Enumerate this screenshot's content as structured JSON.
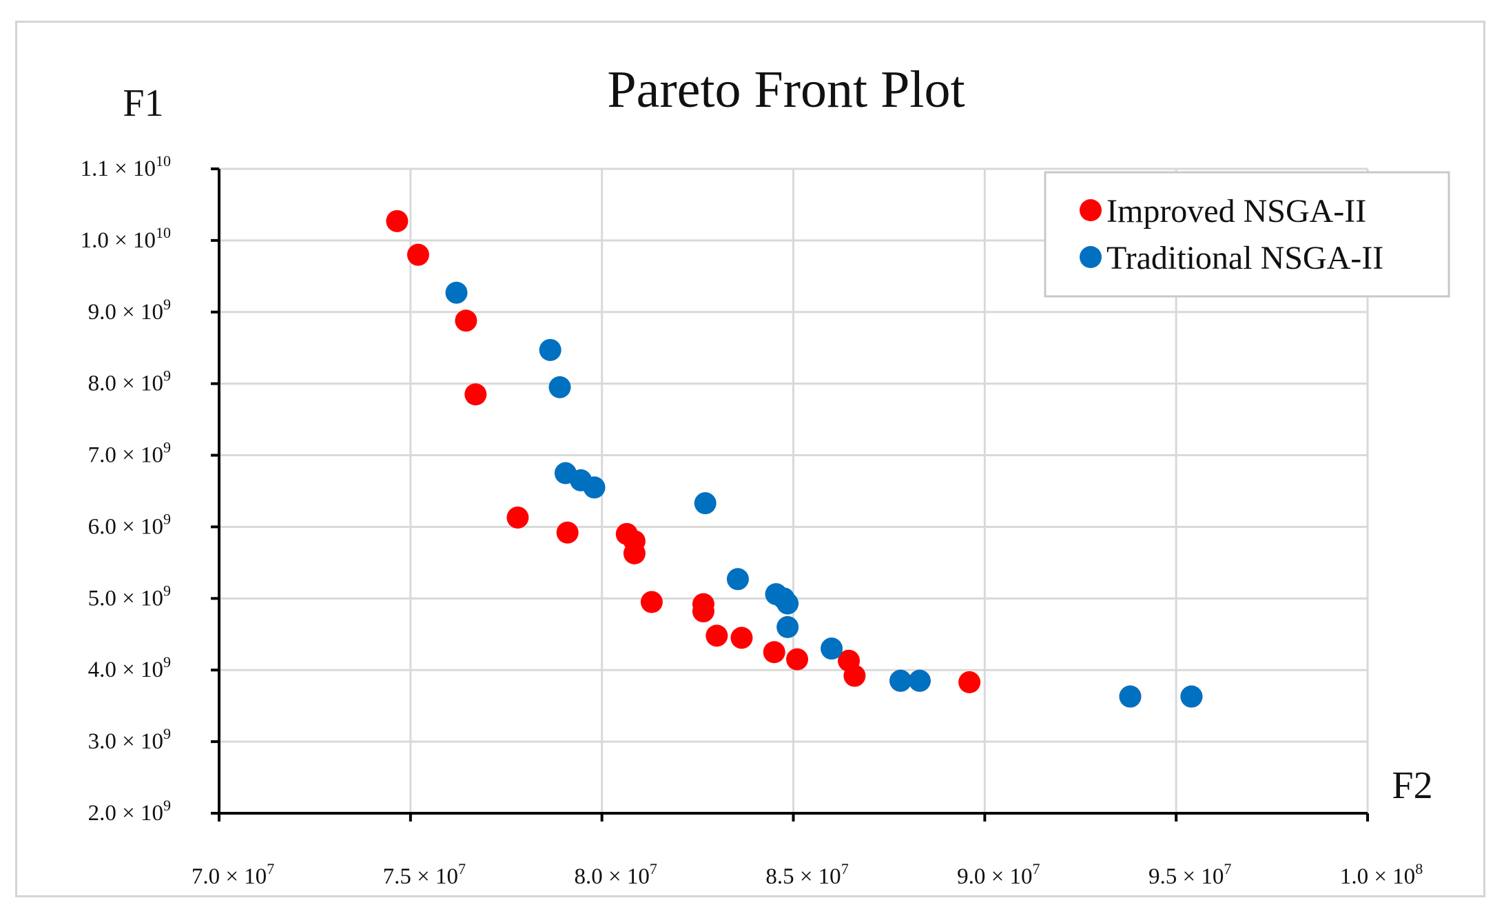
{
  "chart_data": {
    "type": "scatter",
    "title": "Pareto Front Plot",
    "xlabel": "F2",
    "ylabel": "F1",
    "xlim": [
      70000000,
      100000000
    ],
    "ylim": [
      2000000000,
      11000000000
    ],
    "x_ticks": [
      {
        "value": 70000000,
        "mantissa": "7.0",
        "exp": "7"
      },
      {
        "value": 75000000,
        "mantissa": "7.5",
        "exp": "7"
      },
      {
        "value": 80000000,
        "mantissa": "8.0",
        "exp": "7"
      },
      {
        "value": 85000000,
        "mantissa": "8.5",
        "exp": "7"
      },
      {
        "value": 90000000,
        "mantissa": "9.0",
        "exp": "7"
      },
      {
        "value": 95000000,
        "mantissa": "9.5",
        "exp": "7"
      },
      {
        "value": 100000000,
        "mantissa": "1.0",
        "exp": "8"
      }
    ],
    "y_ticks": [
      {
        "value": 11000000000,
        "mantissa": "1.1",
        "exp": "10"
      },
      {
        "value": 10000000000,
        "mantissa": "1.0",
        "exp": "10"
      },
      {
        "value": 9000000000,
        "mantissa": "9.0",
        "exp": "9"
      },
      {
        "value": 8000000000,
        "mantissa": "8.0",
        "exp": "9"
      },
      {
        "value": 7000000000,
        "mantissa": "7.0",
        "exp": "9"
      },
      {
        "value": 6000000000,
        "mantissa": "6.0",
        "exp": "9"
      },
      {
        "value": 5000000000,
        "mantissa": "5.0",
        "exp": "9"
      },
      {
        "value": 4000000000,
        "mantissa": "4.0",
        "exp": "9"
      },
      {
        "value": 3000000000,
        "mantissa": "3.0",
        "exp": "9"
      },
      {
        "value": 2000000000,
        "mantissa": "2.0",
        "exp": "9"
      }
    ],
    "grid": true,
    "legend_position": "top-right",
    "series": [
      {
        "name": "Improved NSGA-II",
        "color": "#ff0000",
        "points": [
          [
            74650000,
            10270000000
          ],
          [
            75200000,
            9800000000
          ],
          [
            76450000,
            8880000000
          ],
          [
            76700000,
            7850000000
          ],
          [
            77800000,
            6130000000
          ],
          [
            79100000,
            5920000000
          ],
          [
            80650000,
            5900000000
          ],
          [
            80850000,
            5800000000
          ],
          [
            80850000,
            5630000000
          ],
          [
            81300000,
            4950000000
          ],
          [
            82650000,
            4920000000
          ],
          [
            82650000,
            4820000000
          ],
          [
            83000000,
            4480000000
          ],
          [
            83650000,
            4450000000
          ],
          [
            84500000,
            4250000000
          ],
          [
            85100000,
            4150000000
          ],
          [
            86450000,
            4130000000
          ],
          [
            86600000,
            3920000000
          ],
          [
            87800000,
            3850000000
          ],
          [
            88300000,
            3850000000
          ],
          [
            89600000,
            3830000000
          ],
          [
            93800000,
            3630000000
          ],
          [
            95400000,
            3630000000
          ]
        ]
      },
      {
        "name": "Traditional NSGA-II",
        "color": "#0070c0",
        "points": [
          [
            76200000,
            9270000000
          ],
          [
            78650000,
            8470000000
          ],
          [
            78900000,
            7950000000
          ],
          [
            79050000,
            6750000000
          ],
          [
            79450000,
            6650000000
          ],
          [
            79800000,
            6550000000
          ],
          [
            82700000,
            6330000000
          ],
          [
            83550000,
            5270000000
          ],
          [
            84550000,
            5060000000
          ],
          [
            84750000,
            5000000000
          ],
          [
            84850000,
            4930000000
          ],
          [
            84850000,
            4600000000
          ],
          [
            86000000,
            4300000000
          ],
          [
            87800000,
            3850000000
          ],
          [
            88300000,
            3850000000
          ],
          [
            93800000,
            3630000000
          ],
          [
            95400000,
            3630000000
          ]
        ]
      }
    ]
  }
}
